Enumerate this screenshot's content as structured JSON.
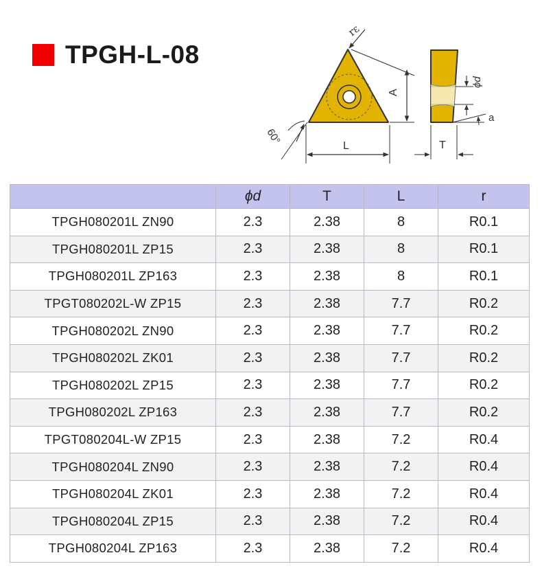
{
  "title": "TPGH-L-08",
  "colors": {
    "accent": "#ee0000",
    "insert": "#e2b300",
    "header_bg": "#c3c3ee",
    "alt_row": "#f2f2f2"
  },
  "diagram_labels": {
    "radius": "rε",
    "angle": "60°",
    "height": "A",
    "length": "L",
    "thickness": "T",
    "hole": "ϕd",
    "clearance": "a"
  },
  "table": {
    "columns": [
      "",
      "ϕd",
      "T",
      "L",
      "r"
    ],
    "rows": [
      {
        "model": "TPGH080201L ZN90",
        "d": "2.3",
        "t": "2.38",
        "l": "8",
        "r": "R0.1"
      },
      {
        "model": "TPGH080201L ZP15",
        "d": "2.3",
        "t": "2.38",
        "l": "8",
        "r": "R0.1"
      },
      {
        "model": "TPGH080201L ZP163",
        "d": "2.3",
        "t": "2.38",
        "l": "8",
        "r": "R0.1"
      },
      {
        "model": "TPGT080202L-W ZP15",
        "d": "2.3",
        "t": "2.38",
        "l": "7.7",
        "r": "R0.2"
      },
      {
        "model": "TPGH080202L ZN90",
        "d": "2.3",
        "t": "2.38",
        "l": "7.7",
        "r": "R0.2"
      },
      {
        "model": "TPGH080202L ZK01",
        "d": "2.3",
        "t": "2.38",
        "l": "7.7",
        "r": "R0.2"
      },
      {
        "model": "TPGH080202L ZP15",
        "d": "2.3",
        "t": "2.38",
        "l": "7.7",
        "r": "R0.2"
      },
      {
        "model": "TPGH080202L ZP163",
        "d": "2.3",
        "t": "2.38",
        "l": "7.7",
        "r": "R0.2"
      },
      {
        "model": "TPGT080204L-W ZP15",
        "d": "2.3",
        "t": "2.38",
        "l": "7.2",
        "r": "R0.4"
      },
      {
        "model": "TPGH080204L ZN90",
        "d": "2.3",
        "t": "2.38",
        "l": "7.2",
        "r": "R0.4"
      },
      {
        "model": "TPGH080204L ZK01",
        "d": "2.3",
        "t": "2.38",
        "l": "7.2",
        "r": "R0.4"
      },
      {
        "model": "TPGH080204L ZP15",
        "d": "2.3",
        "t": "2.38",
        "l": "7.2",
        "r": "R0.4"
      },
      {
        "model": "TPGH080204L ZP163",
        "d": "2.3",
        "t": "2.38",
        "l": "7.2",
        "r": "R0.4"
      }
    ]
  }
}
